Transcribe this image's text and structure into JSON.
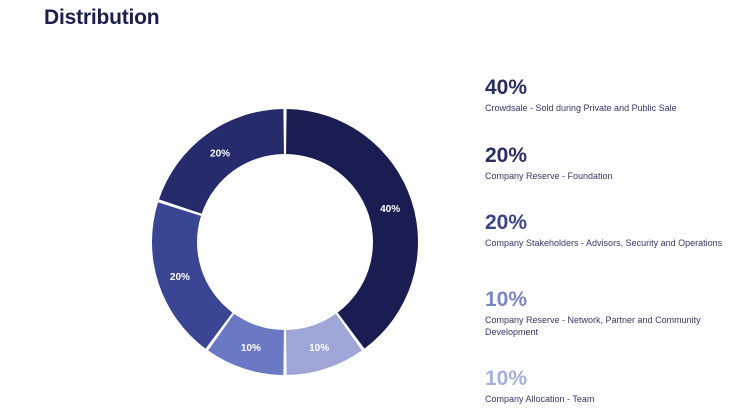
{
  "title": "Distribution",
  "colors": {
    "slice_dark": "#1a1d52",
    "slice_navy": "#252b6b",
    "slice_indigo": "#3a4593",
    "slice_mid": "#6b79c4",
    "slice_light": "#9ea6d8",
    "text_dark": "#2a2e61",
    "text_mid": "#3c4686",
    "text_light": "#7a86c4",
    "text_pale": "#a7afdb"
  },
  "chart_data": {
    "type": "pie",
    "donut": true,
    "slices": [
      {
        "label": "40%",
        "value": 40,
        "color": "#1a1d52"
      },
      {
        "label": "10%",
        "value": 10,
        "color": "#9ea6d8"
      },
      {
        "label": "10%",
        "value": 10,
        "color": "#6b79c4"
      },
      {
        "label": "20%",
        "value": 20,
        "color": "#3a4593"
      },
      {
        "label": "20%",
        "value": 20,
        "color": "#252b6b"
      }
    ]
  },
  "legend": [
    {
      "percent": "40%",
      "description": "Crowdsale - Sold during Private and Public Sale",
      "color": "#2a2e61"
    },
    {
      "percent": "20%",
      "description": "Company Reserve - Foundation",
      "color": "#2a2e61"
    },
    {
      "percent": "20%",
      "description": "Company Stakeholders - Advisors, Security and Operations",
      "color": "#3c4686"
    },
    {
      "percent": "10%",
      "description": "Company Reserve - Network, Partner and Community Development",
      "color": "#7a86c4"
    },
    {
      "percent": "10%",
      "description": "Company Allocation - Team",
      "color": "#a7afdb"
    }
  ]
}
